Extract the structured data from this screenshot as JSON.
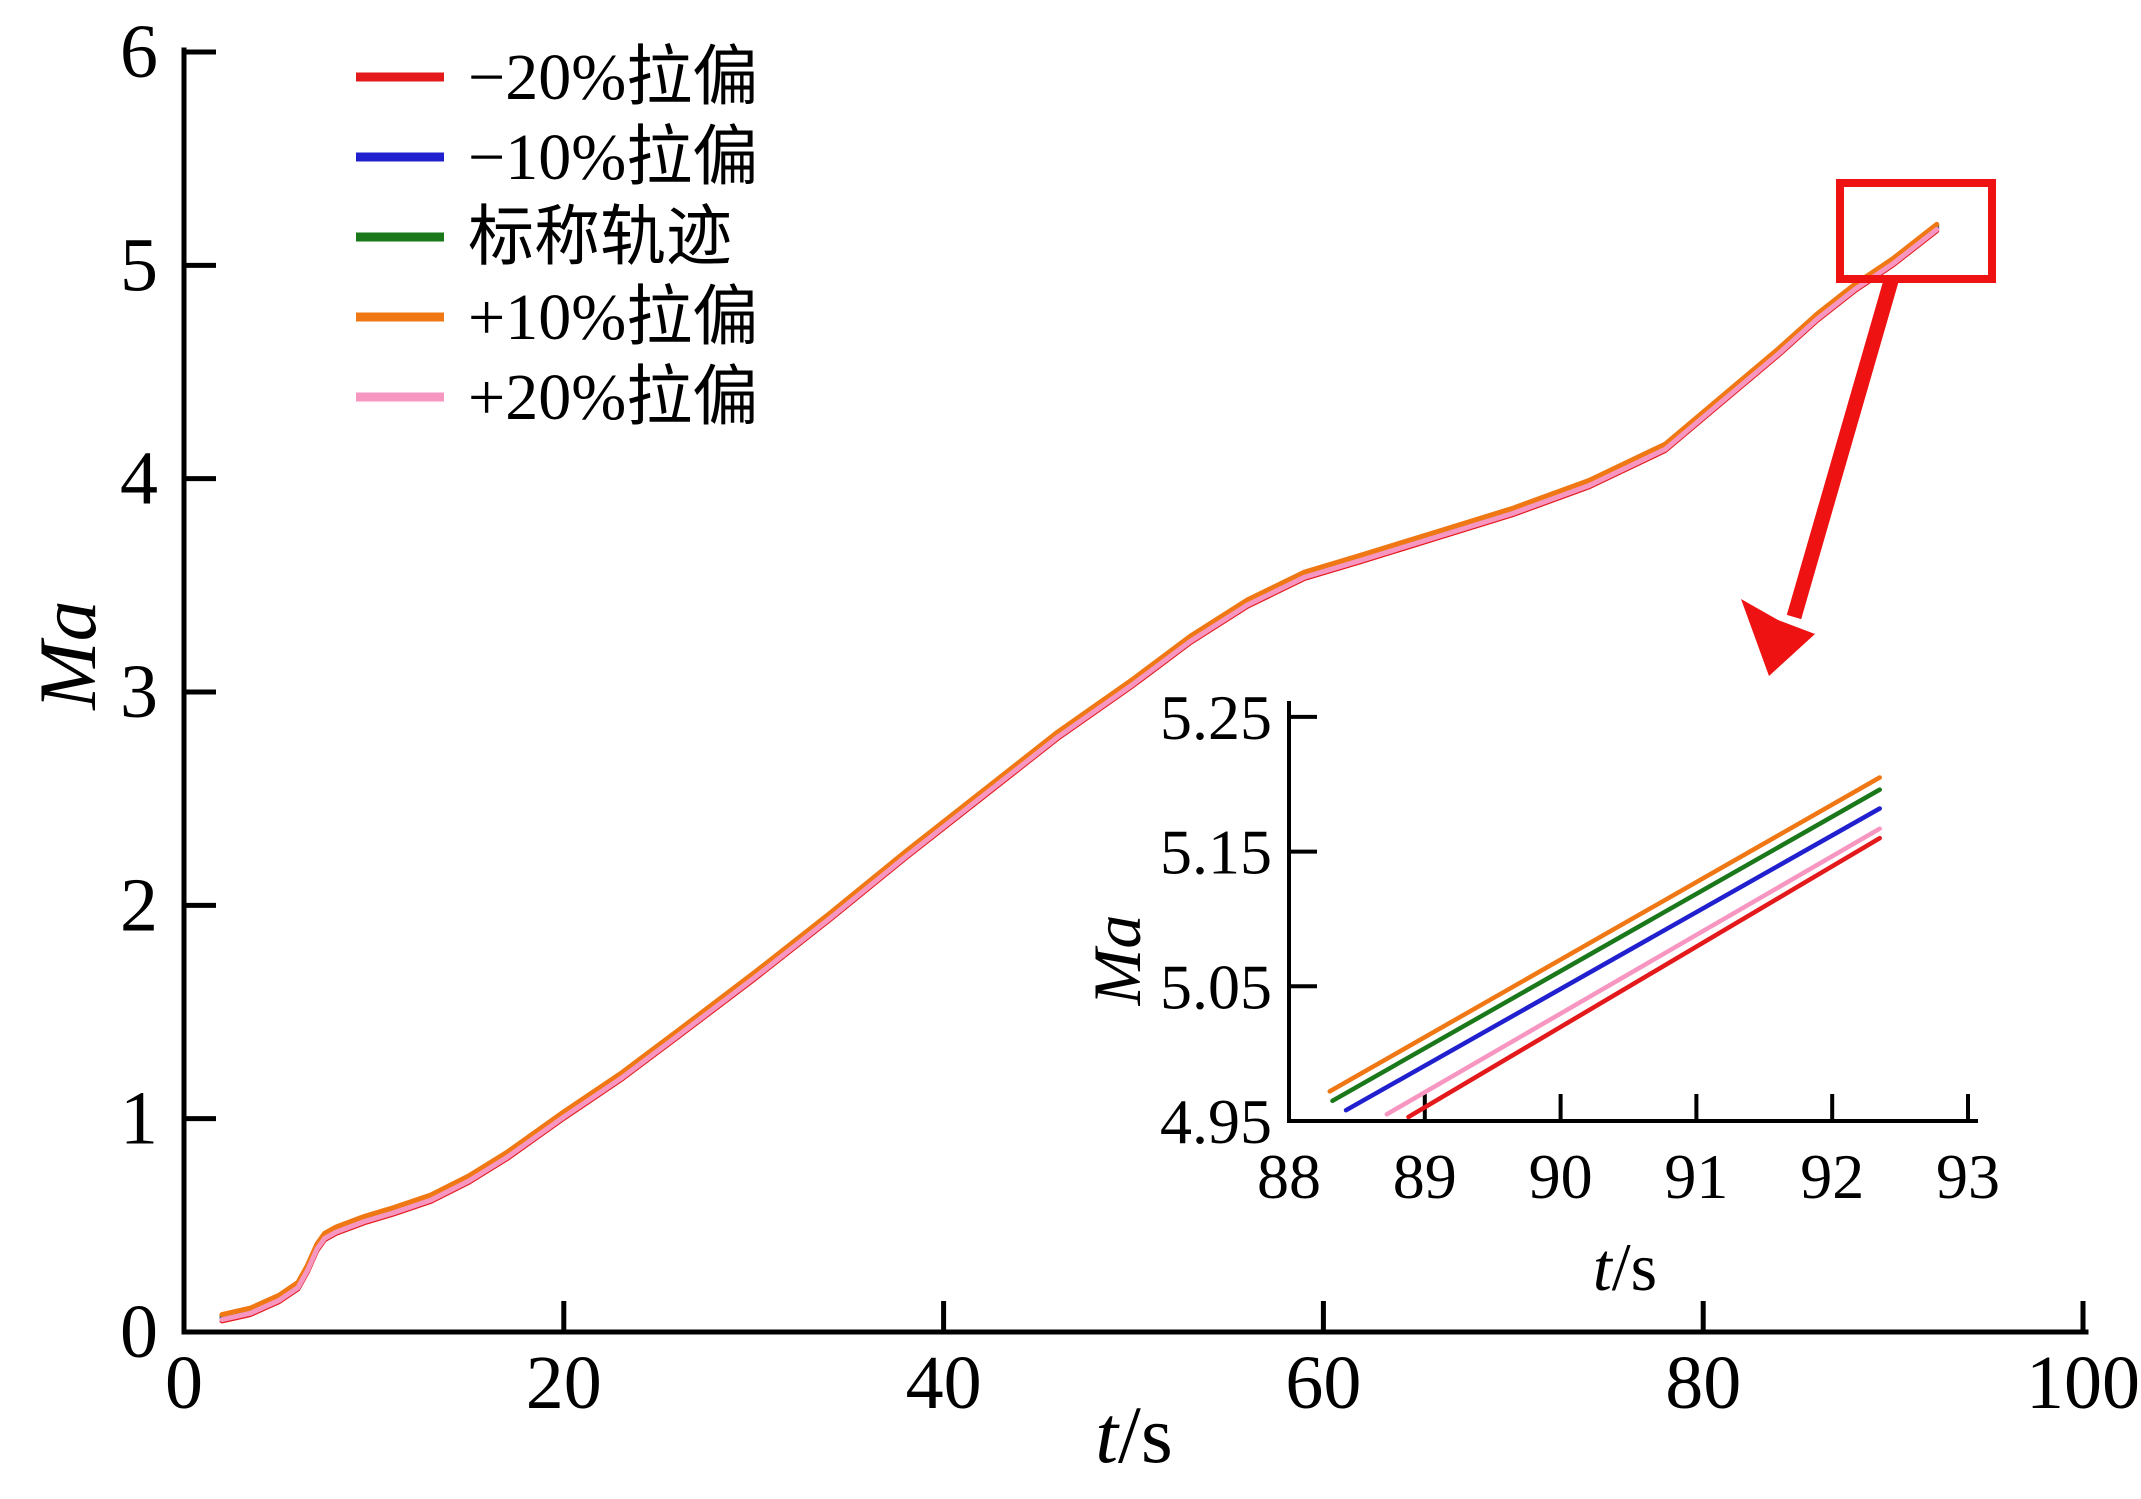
{
  "figure": {
    "background": "#ffffff",
    "axis_color": "#000000",
    "annotation": {
      "type": "zoom-callout",
      "color": "#ee1212",
      "description": "red rectangle around trajectory end with red arrow pointing to magnified inset"
    },
    "main": {
      "xlabel_var": "t",
      "xlabel_unit": "/s",
      "ylabel": "Ma"
    },
    "inset": {
      "xlabel_var": "t",
      "xlabel_unit": "/s",
      "ylabel": "Ma"
    },
    "legend": [
      {
        "label": "−20%拉偏",
        "color": "#e3191b"
      },
      {
        "label": "−10%拉偏",
        "color": "#2020cf"
      },
      {
        "label": "标称轨迹",
        "color": "#1a781a"
      },
      {
        "label": "+10%拉偏",
        "color": "#f07814"
      },
      {
        "label": "+20%拉偏",
        "color": "#f796c1"
      }
    ]
  },
  "chart_data": [
    {
      "type": "line",
      "role": "main",
      "title": "",
      "xlabel": "t/s",
      "ylabel": "Ma",
      "xlim": [
        0,
        100
      ],
      "ylim": [
        0,
        6
      ],
      "grid": false,
      "legend_position": "upper-left",
      "xtick_marks": [
        20,
        40,
        60,
        80,
        100
      ],
      "xtick_labels": [
        0,
        20,
        40,
        60,
        80,
        100
      ],
      "ytick_marks": [
        1,
        2,
        3,
        4,
        5,
        6
      ],
      "ytick_labels": [
        0,
        1,
        2,
        3,
        4,
        5,
        6
      ],
      "x": [
        2,
        3.5,
        5,
        6,
        6.5,
        7,
        7.4,
        8,
        9.5,
        11,
        13,
        15,
        17,
        20,
        23,
        26,
        30,
        34,
        38,
        42,
        46,
        50,
        53,
        56,
        59,
        62,
        66,
        70,
        74,
        78,
        82,
        84,
        86,
        88,
        90,
        92.3
      ],
      "base_ma": [
        0.07,
        0.1,
        0.16,
        0.22,
        0.3,
        0.4,
        0.45,
        0.48,
        0.53,
        0.57,
        0.63,
        0.72,
        0.83,
        1.02,
        1.2,
        1.4,
        1.67,
        1.95,
        2.24,
        2.52,
        2.8,
        3.05,
        3.25,
        3.42,
        3.55,
        3.63,
        3.74,
        3.85,
        3.98,
        4.15,
        4.45,
        4.6,
        4.76,
        4.9,
        5.02,
        5.18
      ],
      "note": "five dispersion trajectories nearly overlap; each series value = base_ma + offset_ma",
      "series": [
        {
          "name": "−20%拉偏",
          "color": "#e3191b",
          "offset_ma": -0.018
        },
        {
          "name": "−10%拉偏",
          "color": "#2020cf",
          "offset_ma": -0.006
        },
        {
          "name": "标称轨迹",
          "color": "#1a781a",
          "offset_ma": 0.006
        },
        {
          "name": "+10%拉偏",
          "color": "#f07814",
          "offset_ma": 0.012
        },
        {
          "name": "+20%拉偏",
          "color": "#f796c1",
          "offset_ma": -0.012
        }
      ]
    },
    {
      "type": "line",
      "role": "inset-zoom",
      "title": "",
      "xlabel": "t/s",
      "ylabel": "Ma",
      "xlim": [
        88,
        93
      ],
      "ylim": [
        4.95,
        5.25
      ],
      "grid": false,
      "xtick_marks": [
        89,
        90,
        91,
        92,
        93
      ],
      "xtick_labels": [
        88,
        89,
        90,
        91,
        92,
        93
      ],
      "ytick_marks": [
        5.05,
        5.15,
        5.25
      ],
      "ytick_labels": [
        4.95,
        5.05,
        5.15,
        5.25
      ],
      "series": [
        {
          "name": "+10%拉偏",
          "color": "#f07814",
          "points": [
            [
              88.3,
              4.972
            ],
            [
              92.35,
              5.205
            ]
          ]
        },
        {
          "name": "标称轨迹",
          "color": "#1a781a",
          "points": [
            [
              88.32,
              4.965
            ],
            [
              92.35,
              5.196
            ]
          ]
        },
        {
          "name": "−10%拉偏",
          "color": "#2020cf",
          "points": [
            [
              88.42,
              4.958
            ],
            [
              92.35,
              5.182
            ]
          ]
        },
        {
          "name": "+20%拉偏",
          "color": "#f796c1",
          "points": [
            [
              88.72,
              4.955
            ],
            [
              92.35,
              5.167
            ]
          ]
        },
        {
          "name": "−20%拉偏",
          "color": "#e3191b",
          "points": [
            [
              88.88,
              4.953
            ],
            [
              92.35,
              5.16
            ]
          ]
        }
      ]
    }
  ]
}
